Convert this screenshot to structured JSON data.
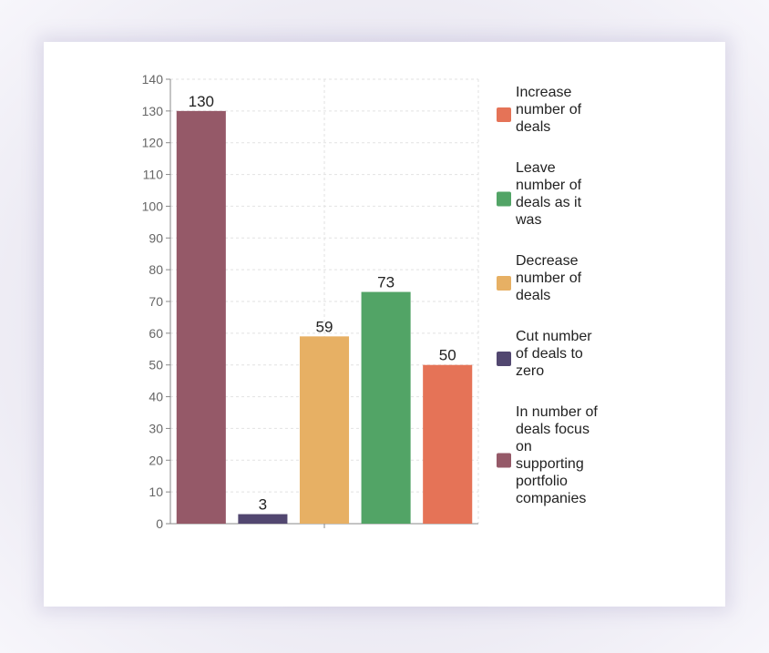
{
  "chart_data": {
    "type": "bar",
    "title": "",
    "xlabel": "",
    "ylabel": "",
    "ylim": [
      0,
      140
    ],
    "yticks": [
      0,
      10,
      20,
      30,
      40,
      50,
      60,
      70,
      80,
      90,
      100,
      110,
      120,
      130,
      140
    ],
    "grid": true,
    "legend_position": "right",
    "bars": [
      {
        "series": "In number of deals focus on supporting portfolio companies",
        "value": 130,
        "color": "#955968"
      },
      {
        "series": "Cut number of deals to zero",
        "value": 3,
        "color": "#524770"
      },
      {
        "series": "Decrease number of deals",
        "value": 59,
        "color": "#e7b064"
      },
      {
        "series": "Leave number of deals as it was",
        "value": 73,
        "color": "#52a466"
      },
      {
        "series": "Increase number of deals",
        "value": 50,
        "color": "#e57357"
      }
    ],
    "legend": [
      {
        "lines": [
          "Increase",
          "number of",
          "deals"
        ],
        "color": "#e57357"
      },
      {
        "lines": [
          "Leave",
          "number of",
          "deals as it",
          "was"
        ],
        "color": "#52a466"
      },
      {
        "lines": [
          "Decrease",
          "number of",
          "deals"
        ],
        "color": "#e7b064"
      },
      {
        "lines": [
          "Cut number",
          "of deals to",
          "zero"
        ],
        "color": "#524770"
      },
      {
        "lines": [
          "In number of",
          "deals focus",
          "on",
          "supporting",
          "portfolio",
          "companies"
        ],
        "color": "#955968"
      }
    ]
  }
}
